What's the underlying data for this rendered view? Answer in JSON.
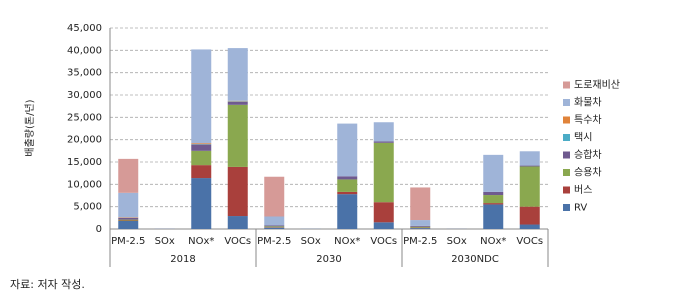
{
  "chart_data": {
    "type": "stacked_bar",
    "ylabel": "배출량(톤/년)",
    "source": "자료: 저자 작성.",
    "groups": [
      "2018",
      "2030",
      "2030NDC"
    ],
    "categories": [
      "PM-2.5",
      "SOx",
      "NOx*",
      "VOCs",
      "PM-2.5",
      "SOx",
      "NOx*",
      "VOCs",
      "PM-2.5",
      "SOx",
      "NOx*",
      "VOCs"
    ],
    "series": [
      {
        "name": "RV",
        "color": "#4a72a8",
        "values": [
          1800,
          50,
          11400,
          2900,
          300,
          50,
          7800,
          1500,
          200,
          30,
          5500,
          1000
        ]
      },
      {
        "name": "버스",
        "color": "#a9403c",
        "values": [
          100,
          10,
          2900,
          11000,
          100,
          10,
          500,
          4500,
          100,
          5,
          300,
          4000
        ]
      },
      {
        "name": "승용차",
        "color": "#8aa84f",
        "values": [
          200,
          10,
          3200,
          13900,
          200,
          10,
          2800,
          13300,
          200,
          5,
          1800,
          9000
        ]
      },
      {
        "name": "승합차",
        "color": "#6f5a8f",
        "values": [
          400,
          10,
          1400,
          700,
          200,
          5,
          700,
          300,
          200,
          5,
          700,
          200
        ]
      },
      {
        "name": "택시",
        "color": "#4bacc6",
        "values": [
          0,
          0,
          100,
          100,
          0,
          0,
          0,
          0,
          0,
          0,
          0,
          0
        ]
      },
      {
        "name": "특수차",
        "color": "#e0833a",
        "values": [
          100,
          0,
          200,
          100,
          0,
          0,
          0,
          0,
          0,
          0,
          0,
          0
        ]
      },
      {
        "name": "화물차",
        "color": "#9fb4d8",
        "values": [
          5500,
          20,
          21000,
          11800,
          2000,
          20,
          11800,
          4300,
          1300,
          5,
          8300,
          3200
        ]
      },
      {
        "name": "도로재비산",
        "color": "#d69a97",
        "values": [
          7600,
          0,
          0,
          0,
          8900,
          0,
          0,
          0,
          7300,
          0,
          0,
          0
        ]
      }
    ],
    "ylim": [
      0,
      45000
    ],
    "yticks": [
      0,
      {
        "value": 5000,
        "label": "5,000"
      },
      {
        "value": 10000,
        "label": "10,000"
      },
      {
        "value": 15000,
        "label": "15,000"
      },
      {
        "value": 20000,
        "label": "20,000"
      },
      {
        "value": 25000,
        "label": "25,000"
      },
      {
        "value": 30000,
        "label": "30,000"
      },
      {
        "value": 35000,
        "label": "35,000"
      },
      {
        "value": 40000,
        "label": "40,000"
      },
      {
        "value": 45000,
        "label": "45,000"
      }
    ],
    "grid": true
  }
}
